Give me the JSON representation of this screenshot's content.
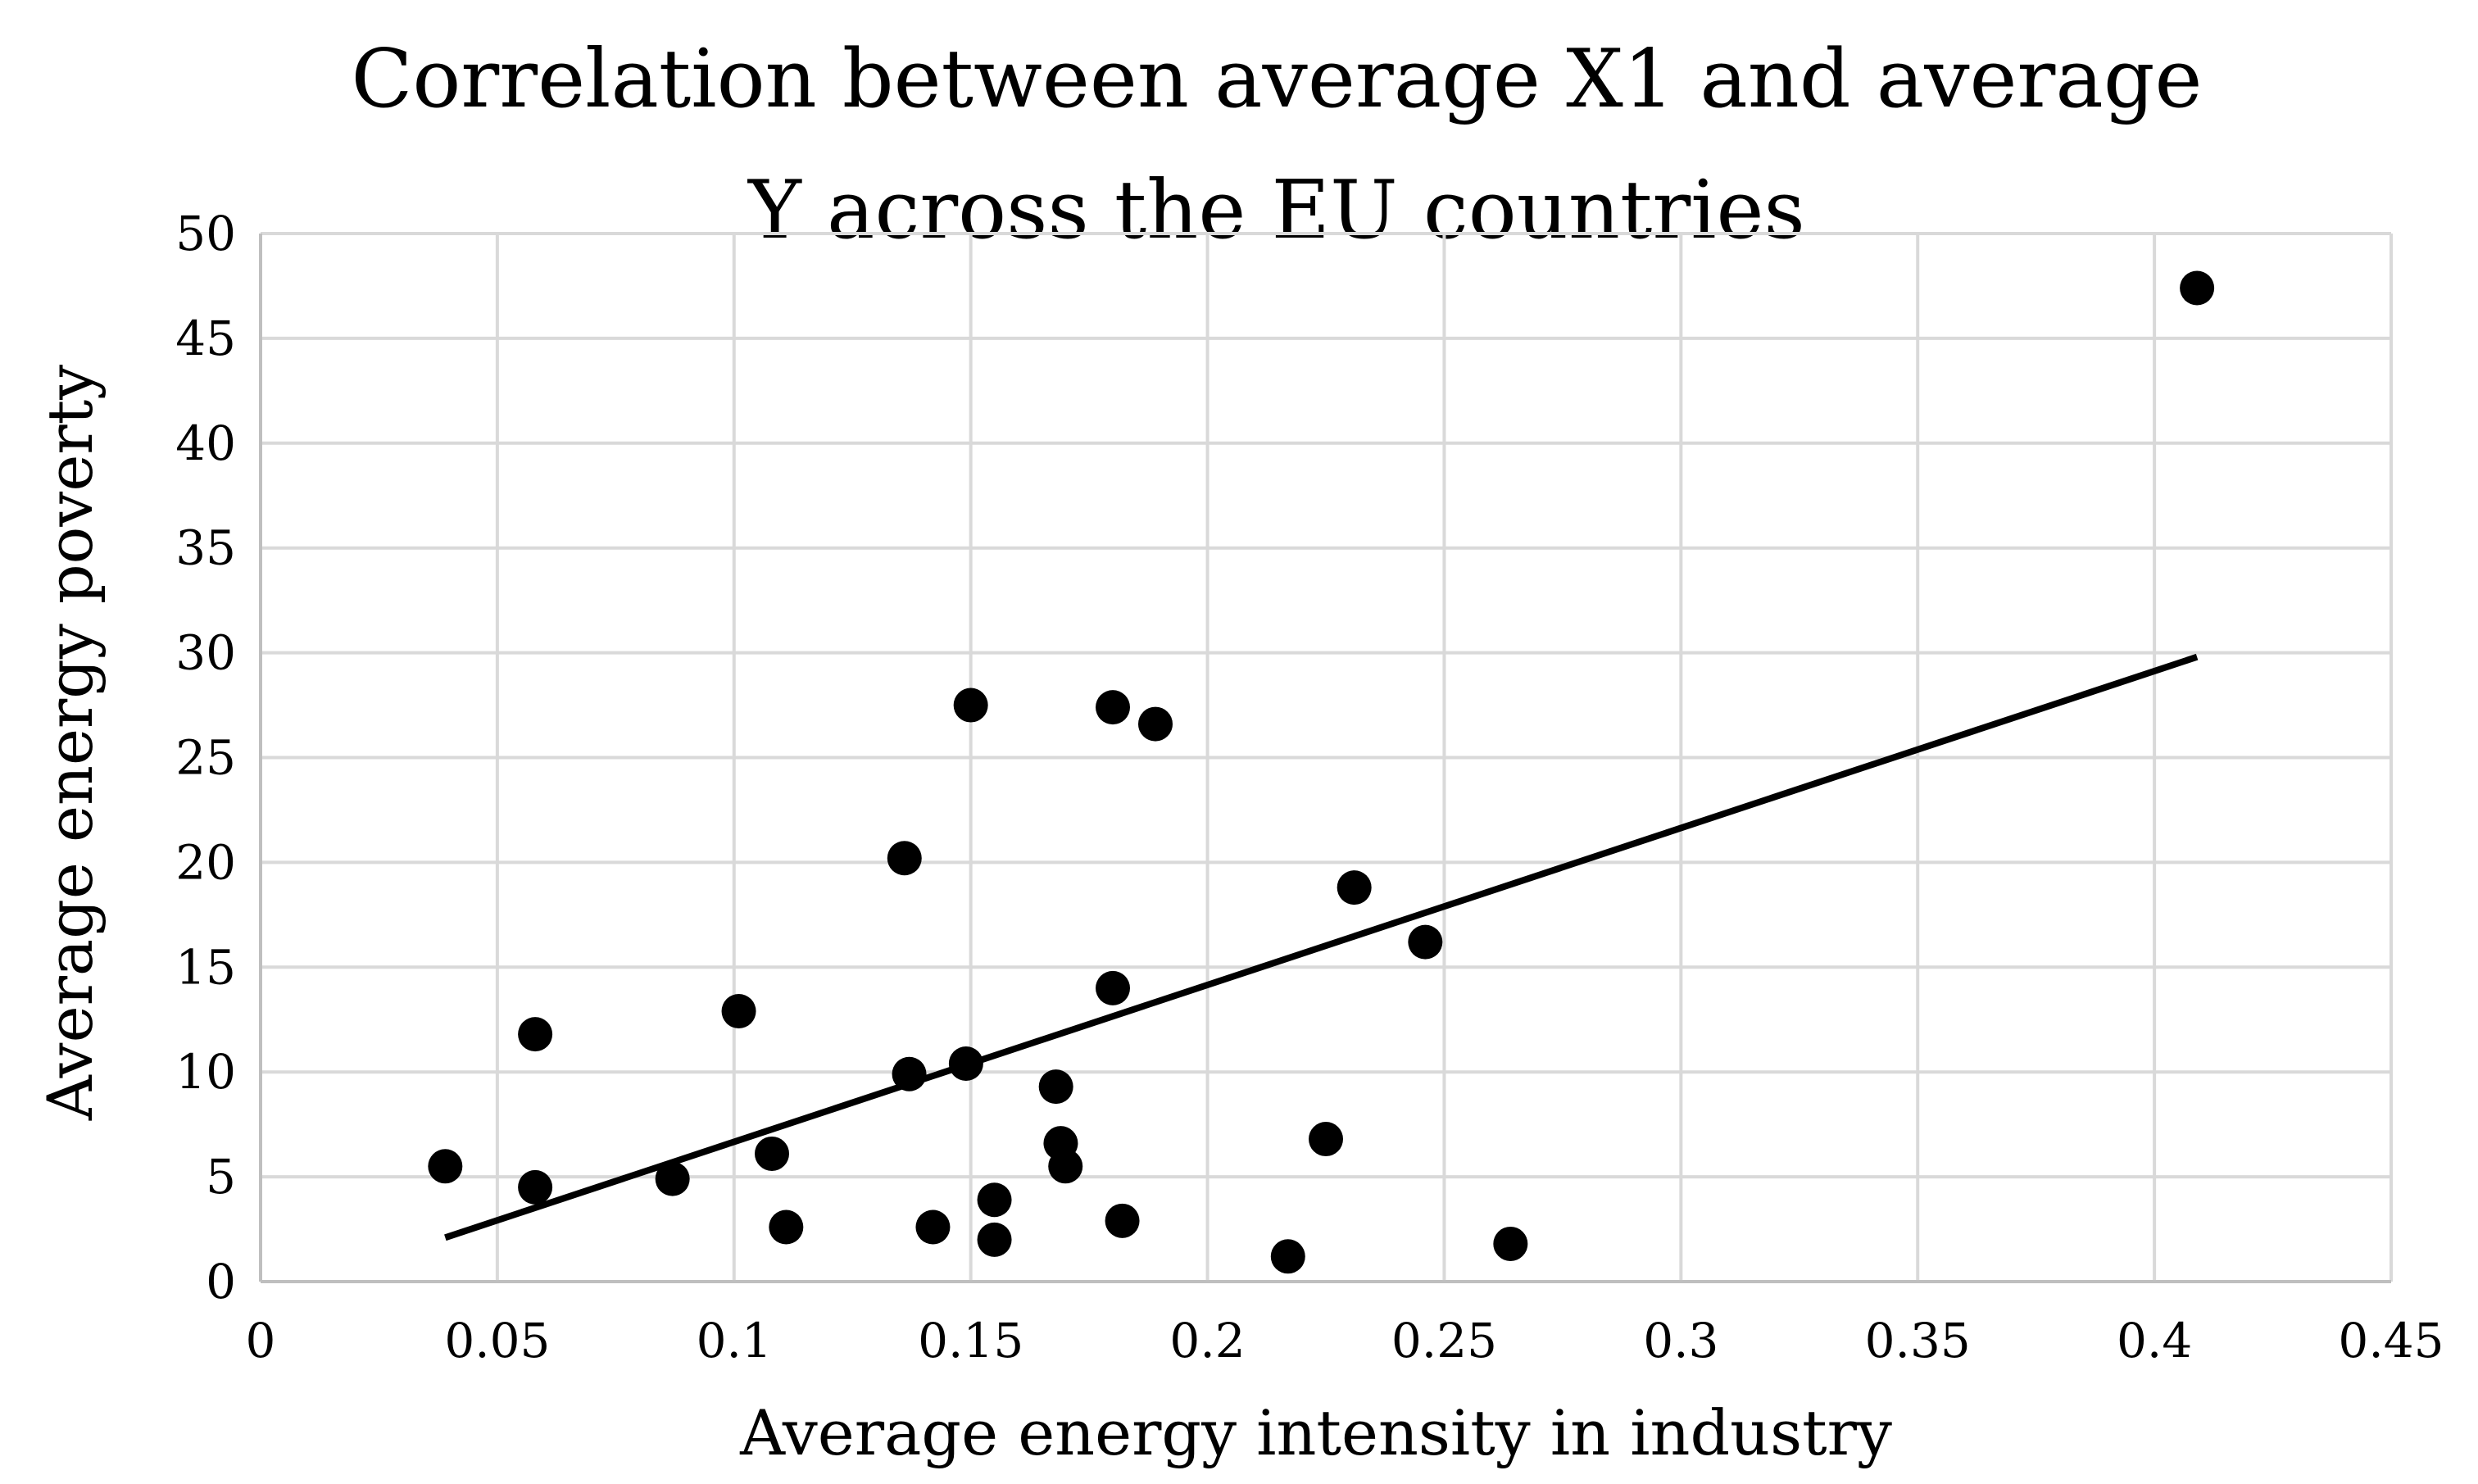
{
  "chart_data": {
    "type": "scatter",
    "title": "Correlation between average X1 and average Y across the EU countries",
    "title_lines": [
      "Correlation between average X1 and average",
      "Y across the EU countries"
    ],
    "xlabel": "Average energy intensity in industry",
    "ylabel": "Average energy poverty",
    "xlim": [
      0,
      0.45
    ],
    "ylim": [
      0,
      50
    ],
    "x_ticks": [
      0,
      0.05,
      0.1,
      0.15,
      0.2,
      0.25,
      0.3,
      0.35,
      0.4,
      0.45
    ],
    "x_tick_labels": [
      "0",
      "0.05",
      "0.1",
      "0.15",
      "0.2",
      "0.25",
      "0.3",
      "0.35",
      "0.4",
      "0.45"
    ],
    "y_ticks": [
      0,
      5,
      10,
      15,
      20,
      25,
      30,
      35,
      40,
      45,
      50
    ],
    "y_tick_labels": [
      "0",
      "5",
      "10",
      "15",
      "20",
      "25",
      "30",
      "35",
      "40",
      "45",
      "50"
    ],
    "grid": true,
    "legend": "none",
    "series": [
      {
        "name": "EU countries",
        "marker": "circle",
        "color": "#000000",
        "points": [
          {
            "x": 0.039,
            "y": 5.5
          },
          {
            "x": 0.058,
            "y": 11.8
          },
          {
            "x": 0.058,
            "y": 4.5
          },
          {
            "x": 0.087,
            "y": 4.9
          },
          {
            "x": 0.101,
            "y": 12.9
          },
          {
            "x": 0.108,
            "y": 6.1
          },
          {
            "x": 0.111,
            "y": 2.6
          },
          {
            "x": 0.136,
            "y": 20.2
          },
          {
            "x": 0.137,
            "y": 9.9
          },
          {
            "x": 0.142,
            "y": 2.6
          },
          {
            "x": 0.149,
            "y": 10.4
          },
          {
            "x": 0.15,
            "y": 27.5
          },
          {
            "x": 0.155,
            "y": 3.9
          },
          {
            "x": 0.155,
            "y": 2.0
          },
          {
            "x": 0.168,
            "y": 9.3
          },
          {
            "x": 0.169,
            "y": 6.6
          },
          {
            "x": 0.17,
            "y": 5.5
          },
          {
            "x": 0.18,
            "y": 27.4
          },
          {
            "x": 0.18,
            "y": 14.0
          },
          {
            "x": 0.182,
            "y": 2.9
          },
          {
            "x": 0.189,
            "y": 26.6
          },
          {
            "x": 0.217,
            "y": 1.2
          },
          {
            "x": 0.225,
            "y": 6.8
          },
          {
            "x": 0.231,
            "y": 18.8
          },
          {
            "x": 0.246,
            "y": 16.2
          },
          {
            "x": 0.264,
            "y": 1.8
          },
          {
            "x": 0.409,
            "y": 47.4
          }
        ]
      }
    ],
    "trendline": {
      "type": "linear",
      "color": "#000000",
      "x0": 0.039,
      "y0": 2.1,
      "x1": 0.409,
      "y1": 29.8
    },
    "colors": {
      "grid": "#d9d9d9",
      "axis": "#bfbfbf",
      "marker": "#000000",
      "text": "#000000"
    }
  }
}
